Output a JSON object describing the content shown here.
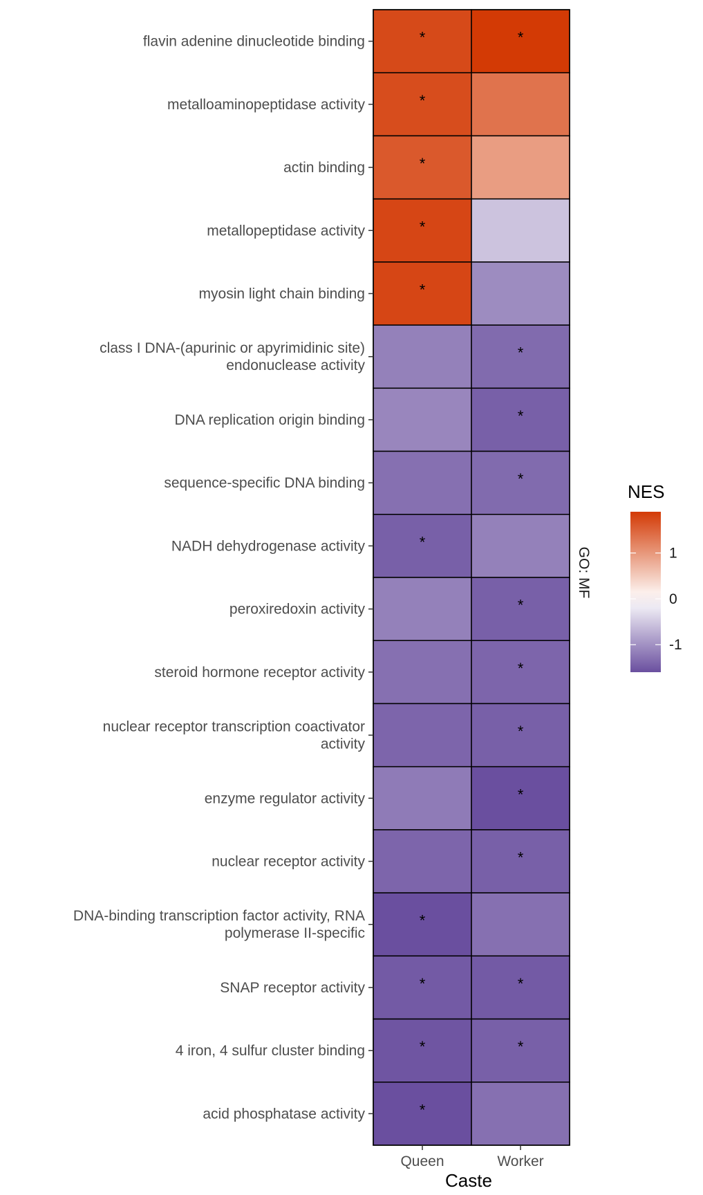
{
  "chart_data": {
    "type": "heatmap",
    "xlabel": "Caste",
    "ylabel": "",
    "x_categories": [
      "Queen",
      "Worker"
    ],
    "facet_label": "GO: MF",
    "legend": {
      "title": "NES",
      "placement": "right",
      "ticks": [
        1,
        0,
        -1
      ],
      "range": [
        -1.6,
        1.9
      ]
    },
    "color_scale": {
      "low": "#6a4f9f",
      "mid": "#ffffff",
      "high": "#d33a05"
    },
    "rows": [
      {
        "term": [
          "flavin adenine dinucleotide binding"
        ],
        "values": [
          1.75,
          1.9
        ],
        "significant": [
          true,
          true
        ]
      },
      {
        "term": [
          "metalloaminopeptidase activity"
        ],
        "values": [
          1.72,
          1.35
        ],
        "significant": [
          true,
          false
        ]
      },
      {
        "term": [
          "actin binding"
        ],
        "values": [
          1.6,
          0.95
        ],
        "significant": [
          true,
          false
        ]
      },
      {
        "term": [
          "metallopeptidase activity"
        ],
        "values": [
          1.78,
          -0.55
        ],
        "significant": [
          true,
          false
        ]
      },
      {
        "term": [
          "myosin light chain binding"
        ],
        "values": [
          1.78,
          -1.05
        ],
        "significant": [
          true,
          false
        ]
      },
      {
        "term": [
          "class I DNA-(apurinic or apyrimidinic site)",
          "endonuclease activity"
        ],
        "values": [
          -1.15,
          -1.35
        ],
        "significant": [
          false,
          true
        ]
      },
      {
        "term": [
          "DNA replication origin binding"
        ],
        "values": [
          -1.1,
          -1.45
        ],
        "significant": [
          false,
          true
        ]
      },
      {
        "term": [
          "sequence-specific DNA binding"
        ],
        "values": [
          -1.3,
          -1.35
        ],
        "significant": [
          false,
          true
        ]
      },
      {
        "term": [
          "NADH dehydrogenase activity"
        ],
        "values": [
          -1.45,
          -1.15
        ],
        "significant": [
          true,
          false
        ]
      },
      {
        "term": [
          "peroxiredoxin activity"
        ],
        "values": [
          -1.15,
          -1.45
        ],
        "significant": [
          false,
          true
        ]
      },
      {
        "term": [
          "steroid hormone receptor activity"
        ],
        "values": [
          -1.3,
          -1.4
        ],
        "significant": [
          false,
          true
        ]
      },
      {
        "term": [
          "nuclear receptor transcription coactivator",
          "activity"
        ],
        "values": [
          -1.4,
          -1.45
        ],
        "significant": [
          false,
          true
        ]
      },
      {
        "term": [
          "enzyme regulator activity"
        ],
        "values": [
          -1.2,
          -1.6
        ],
        "significant": [
          false,
          true
        ]
      },
      {
        "term": [
          "nuclear receptor activity"
        ],
        "values": [
          -1.4,
          -1.45
        ],
        "significant": [
          false,
          true
        ]
      },
      {
        "term": [
          "DNA-binding transcription factor activity, RNA",
          "polymerase II-specific"
        ],
        "values": [
          -1.6,
          -1.3
        ],
        "significant": [
          true,
          false
        ]
      },
      {
        "term": [
          "SNAP receptor activity"
        ],
        "values": [
          -1.5,
          -1.5
        ],
        "significant": [
          true,
          true
        ]
      },
      {
        "term": [
          "4 iron, 4 sulfur cluster binding"
        ],
        "values": [
          -1.55,
          -1.45
        ],
        "significant": [
          true,
          true
        ]
      },
      {
        "term": [
          "acid phosphatase activity"
        ],
        "values": [
          -1.6,
          -1.3
        ],
        "significant": [
          true,
          false
        ]
      }
    ],
    "significance_marker": "*"
  }
}
